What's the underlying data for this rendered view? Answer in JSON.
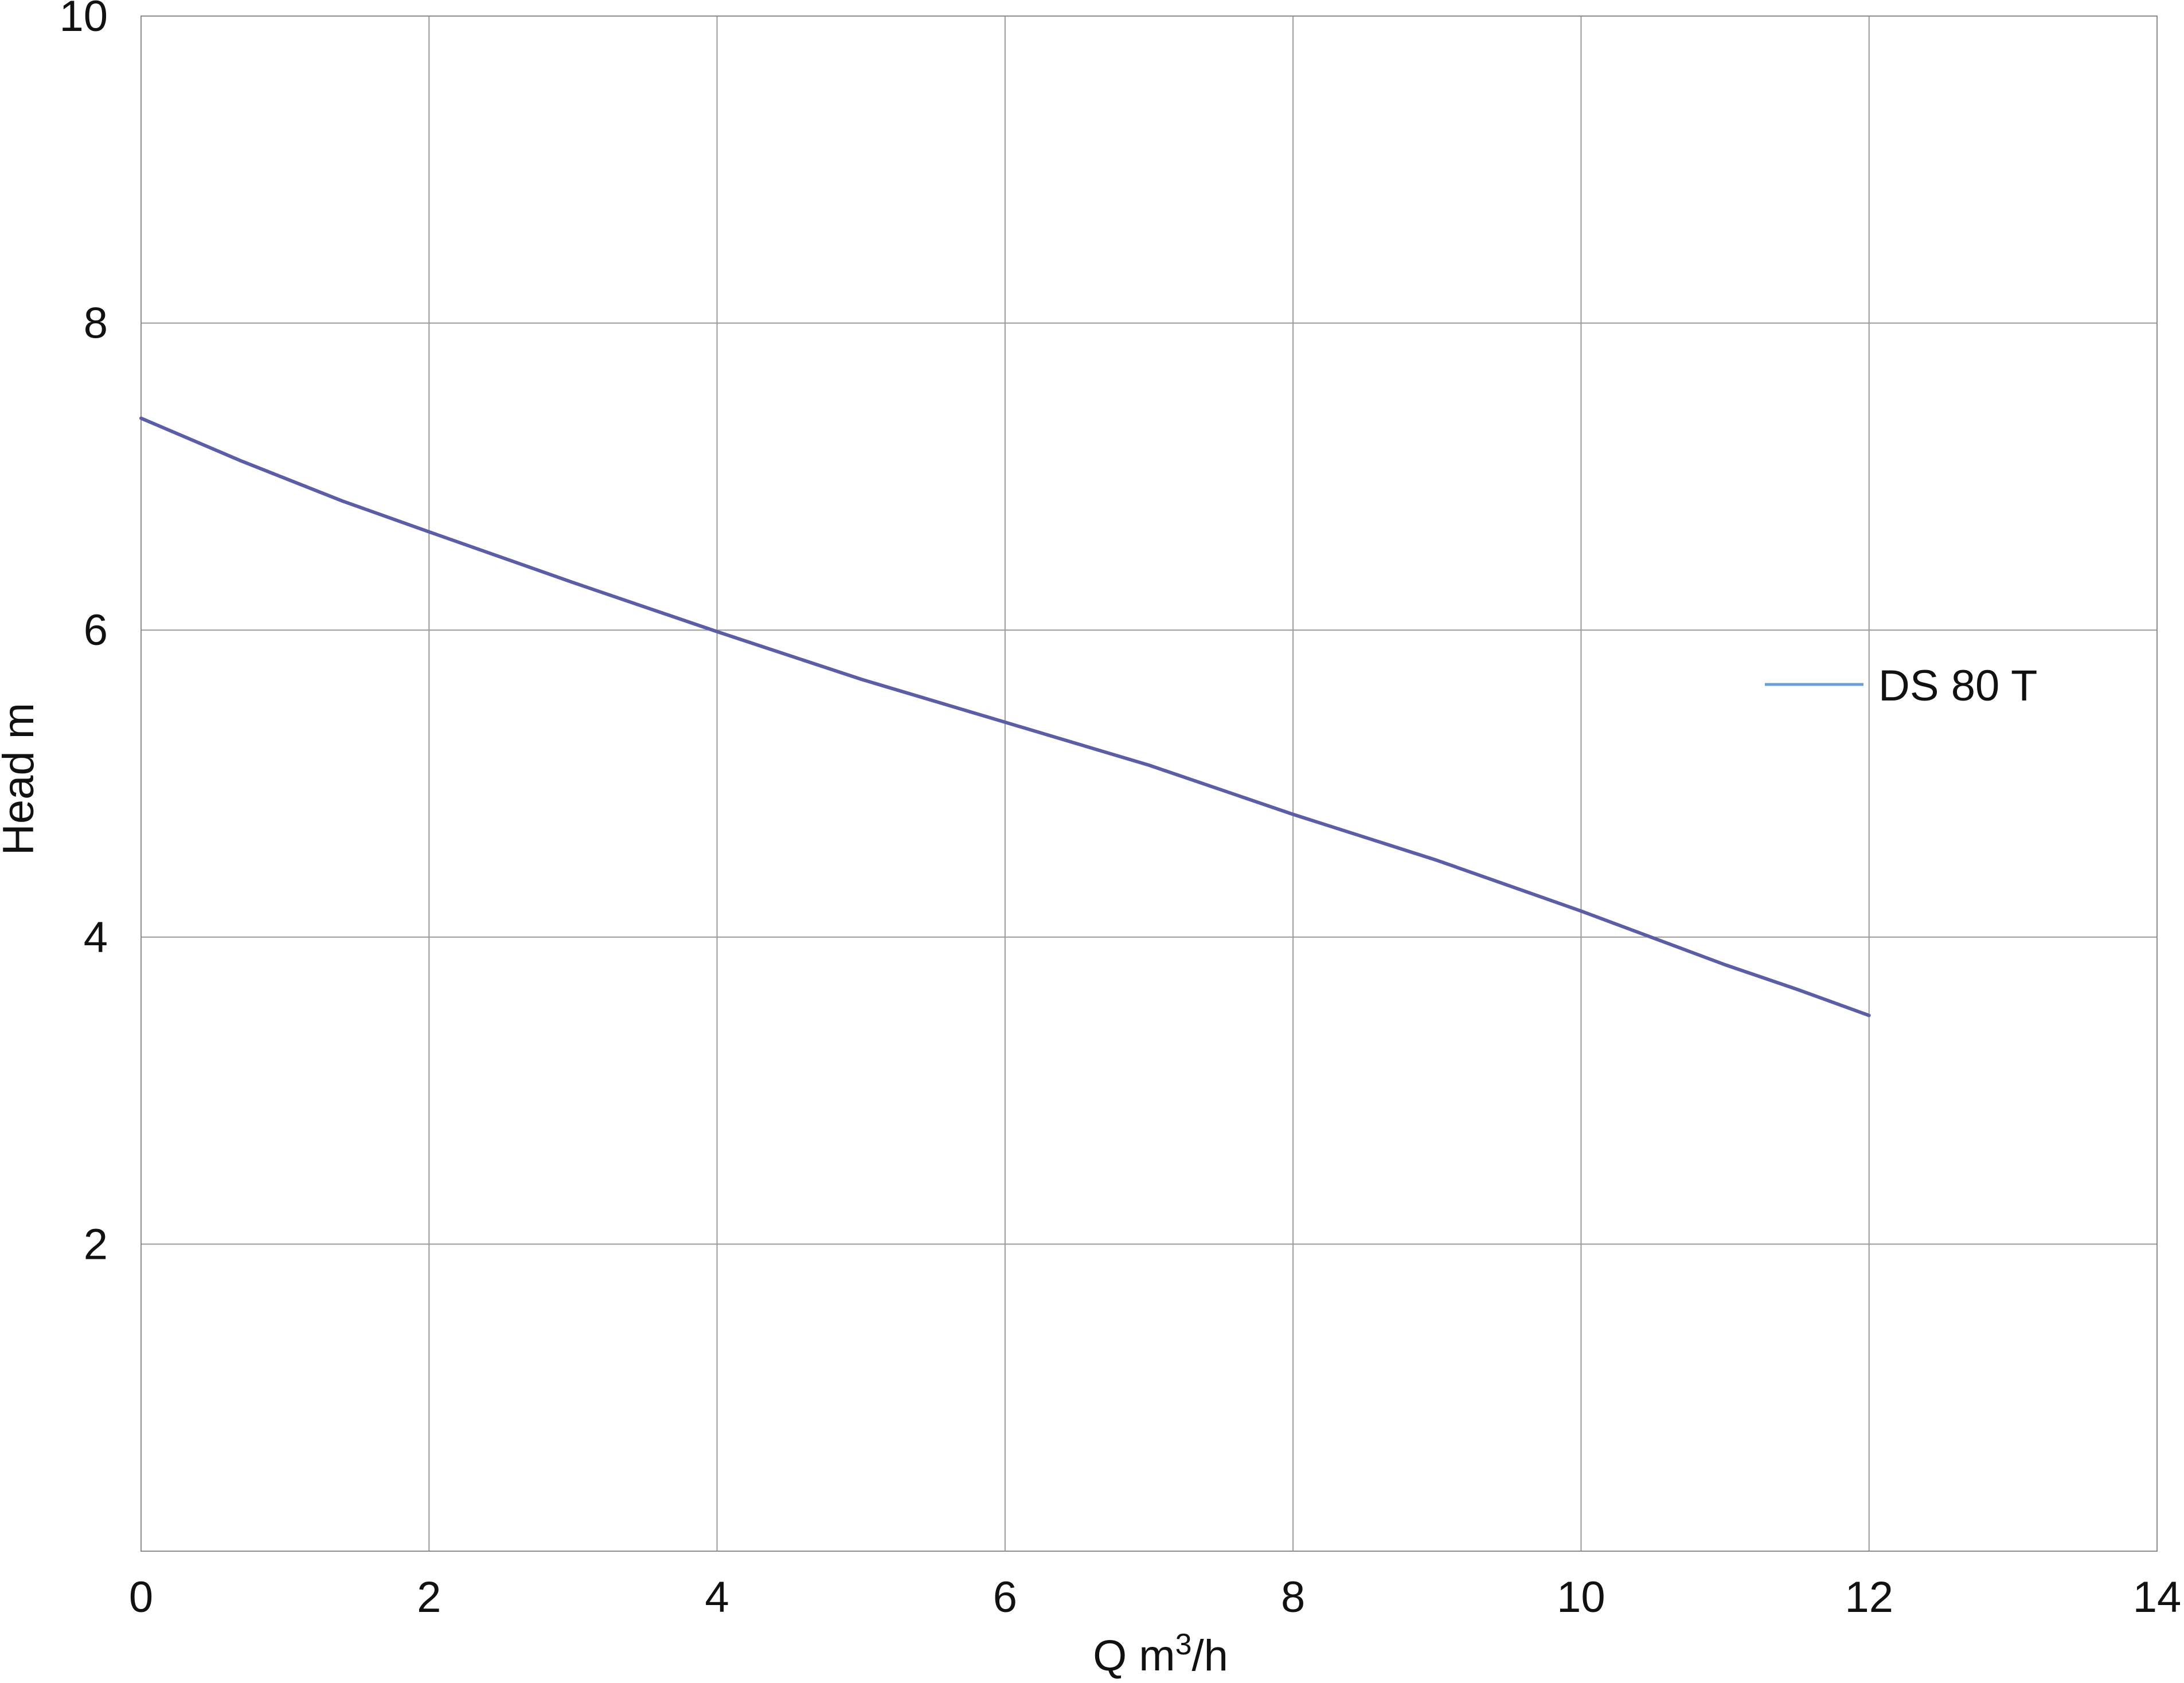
{
  "chart_data": {
    "type": "line",
    "title": "",
    "xlabel": {
      "base": "Q m",
      "superscript": "3",
      "suffix": "/h"
    },
    "ylabel": "Head m",
    "xlim": [
      0,
      14
    ],
    "ylim": [
      0,
      10
    ],
    "xticks": [
      0,
      2,
      4,
      6,
      8,
      10,
      12,
      14
    ],
    "yticks": [
      2,
      4,
      6,
      8,
      10
    ],
    "x_tick_labels": [
      "0",
      "2",
      "4",
      "6",
      "8",
      "10",
      "12",
      "14"
    ],
    "y_tick_labels": [
      "2",
      "4",
      "6",
      "8",
      "10"
    ],
    "grid": true,
    "legend_position": "right",
    "series": [
      {
        "name": "DS 80 T",
        "color": "#5b5ea6",
        "legend_color": "#6a9fd8",
        "x": [
          0,
          0.7,
          1.4,
          2,
          3,
          4,
          5,
          6,
          7,
          8,
          9,
          10,
          11,
          11.5,
          12
        ],
        "y": [
          7.38,
          7.1,
          6.84,
          6.64,
          6.31,
          5.99,
          5.68,
          5.4,
          5.12,
          4.8,
          4.5,
          4.17,
          3.82,
          3.66,
          3.49
        ]
      }
    ]
  }
}
